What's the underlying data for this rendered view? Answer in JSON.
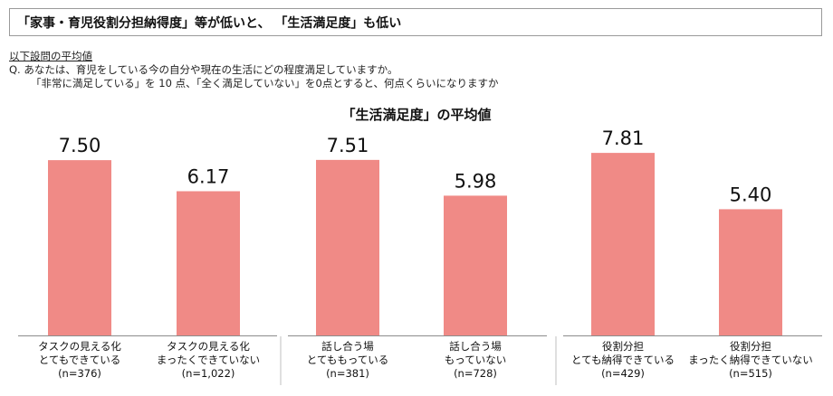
{
  "headline": "「家事・育児役割分担納得度」等が低いと、 「生活満足度」も低い",
  "question": {
    "heading": "以下設問の平均値",
    "line1": "Q.  あなたは、育児をしている今の自分や現在の生活にどの程度満足していますか。",
    "line2": "「非常に満足している」を 10 点、「全く満足していない」を0点とすると、何点くらいになりますか"
  },
  "colors": {
    "bar": "#F08A86",
    "axis": "#8c8c8c",
    "divider": "#bfbfbf"
  },
  "chart_data": {
    "type": "bar",
    "title": "「生活満足度」の平均値",
    "ylim": [
      0,
      10
    ],
    "legend": "none",
    "grid": false,
    "groups": [
      {
        "bars": [
          {
            "label": [
              "タスクの見える化",
              "とてもできている",
              "(n=376)"
            ],
            "value": 7.5,
            "value_label": "7.50"
          },
          {
            "label": [
              "タスクの見える化",
              "まったくできていない",
              "(n=1,022)"
            ],
            "value": 6.17,
            "value_label": "6.17"
          }
        ]
      },
      {
        "bars": [
          {
            "label": [
              "話し合う場",
              "とてももっている",
              "(n=381)"
            ],
            "value": 7.51,
            "value_label": "7.51"
          },
          {
            "label": [
              "話し合う場",
              "もっていない",
              "(n=728)"
            ],
            "value": 5.98,
            "value_label": "5.98"
          }
        ]
      },
      {
        "bars": [
          {
            "label": [
              "役割分担",
              "とても納得できている",
              "(n=429)"
            ],
            "value": 7.81,
            "value_label": "7.81"
          },
          {
            "label": [
              "役割分担",
              "まったく納得できていない",
              "(n=515)"
            ],
            "value": 5.4,
            "value_label": "5.40"
          }
        ]
      }
    ]
  }
}
